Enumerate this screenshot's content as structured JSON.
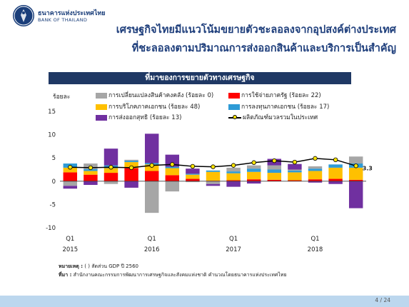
{
  "header": {
    "bank_name_th": "ธนาคารแห่งประเทศไทย",
    "bank_name_en": "BANK OF THAILAND",
    "title_line1": "เศรษฐกิจไทยมีแนวโน้มขยายตัวชะลอลงจากอุปสงค์ต่างประเทศ",
    "title_line2": "ที่ชะลอลงตามปริมาณการส่งออกสินค้าและบริการเป็นสำคัญ"
  },
  "chart_header": "ที่มาของการขยายตัวทางเศรษฐกิจ",
  "notes": {
    "note_label": "หมายเหตุ :",
    "note_text": "( ) สัดส่วน GDP ปี 2560",
    "source_label": "ที่มา :",
    "source_text": "สำนักงานคณะกรรมการพัฒนาการเศรษฐกิจและสังคมแห่งชาติ คำนวณโดยธนาคารแห่งประเทศไทย"
  },
  "footer": {
    "page": "4 / 24"
  },
  "colors": {
    "inventory": "#a6a6a6",
    "government": "#ff0000",
    "consumption": "#ffc000",
    "investment": "#2e9bd6",
    "exports": "#7030a0",
    "gdp_line": "#000000",
    "gdp_marker": "#ffe600",
    "title": "#1f3f7c"
  },
  "chart_data": {
    "type": "bar",
    "stacked": true,
    "ylabel": "ร้อยละ",
    "ylim": [
      -10,
      15
    ],
    "yticks": [
      -10,
      -5,
      0,
      5,
      10,
      15
    ],
    "x_tick_labels": [
      {
        "q": "Q1",
        "year": "2015",
        "index": 0
      },
      {
        "q": "Q1",
        "year": "2016",
        "index": 4
      },
      {
        "q": "Q1",
        "year": "2017",
        "index": 8
      },
      {
        "q": "Q1",
        "year": "2018",
        "index": 12
      }
    ],
    "periods": [
      "2015Q1",
      "2015Q2",
      "2015Q3",
      "2015Q4",
      "2016Q1",
      "2016Q2",
      "2016Q3",
      "2016Q4",
      "2017Q1",
      "2017Q2",
      "2017Q3",
      "2017Q4",
      "2018Q1",
      "2018Q2",
      "2018Q3"
    ],
    "series": [
      {
        "key": "government",
        "name": "การใช้จ่ายภาครัฐ (ร้อยละ 22)",
        "values": [
          1.9,
          1.4,
          1.8,
          2.8,
          2.2,
          1.3,
          0.5,
          0.1,
          0.2,
          0.4,
          0.3,
          0.2,
          0.4,
          0.5,
          0.3
        ]
      },
      {
        "key": "consumption",
        "name": "การบริโภคภาคเอกชน (ร้อยละ 48)",
        "values": [
          1.0,
          0.8,
          1.0,
          1.3,
          1.4,
          1.5,
          0.9,
          1.9,
          1.5,
          1.6,
          1.5,
          1.7,
          1.8,
          2.4,
          2.6
        ]
      },
      {
        "key": "investment",
        "name": "การลงทุนภาคเอกชน (ร้อยละ 17)",
        "values": [
          0.9,
          0.4,
          0.6,
          0.3,
          0.3,
          0.3,
          0.2,
          0.3,
          0.4,
          0.7,
          0.7,
          0.4,
          0.5,
          0.7,
          0.9
        ]
      },
      {
        "key": "inventory",
        "name": "การเปลี่ยนแปลงสินค้าคงคลัง (ร้อยละ 0)",
        "values": [
          -1.0,
          1.2,
          -0.6,
          0.2,
          -6.8,
          -2.2,
          -0.2,
          -0.6,
          0.8,
          0.7,
          0.9,
          0.2,
          0.5,
          0.0,
          1.5
        ]
      },
      {
        "key": "exports",
        "name": "การส่งออกสุทธิ (ร้อยละ 13)",
        "values": [
          -0.6,
          -0.8,
          3.6,
          -1.4,
          6.3,
          2.6,
          1.1,
          -0.4,
          -1.2,
          -0.5,
          1.4,
          1.2,
          -0.3,
          -0.6,
          -5.8
        ]
      }
    ],
    "line": {
      "key": "gdp",
      "name": "ผลิตภัณฑ์มวลรวมในประเทศ",
      "values": [
        3.0,
        2.9,
        3.0,
        2.9,
        3.4,
        3.6,
        3.2,
        3.1,
        3.4,
        4.0,
        4.4,
        4.1,
        4.9,
        4.6,
        3.3
      ],
      "end_label": "3.3"
    },
    "legend_placement": "top",
    "grid": false
  }
}
